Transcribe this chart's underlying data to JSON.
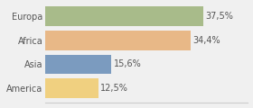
{
  "categories": [
    "Europa",
    "Africa",
    "Asia",
    "America"
  ],
  "values": [
    37.5,
    34.4,
    15.6,
    12.5
  ],
  "labels": [
    "37,5%",
    "34,4%",
    "15,6%",
    "12,5%"
  ],
  "bar_colors": [
    "#a8bb8a",
    "#e8b887",
    "#7b9bbf",
    "#f0d080"
  ],
  "background_color": "#f0f0f0",
  "xlim": [
    0,
    48
  ],
  "bar_height": 0.82,
  "label_fontsize": 7.0,
  "category_fontsize": 7.0
}
